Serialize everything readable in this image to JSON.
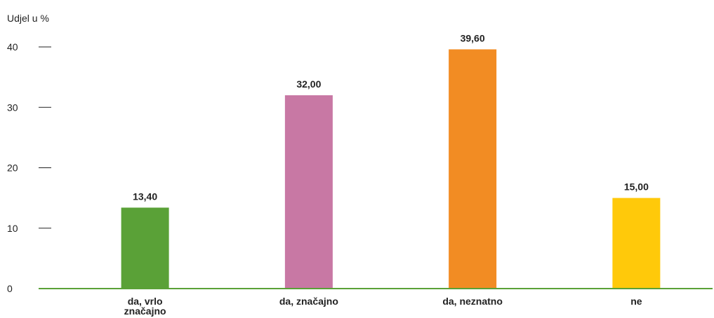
{
  "chart_data": {
    "type": "bar",
    "ylabel": "Udjel u %",
    "ylim": [
      0,
      40
    ],
    "yticks": [
      0,
      10,
      20,
      30,
      40
    ],
    "grid": false,
    "categories": [
      {
        "lines": [
          "da, vrlo",
          "značajno"
        ]
      },
      {
        "lines": [
          "da, značajno"
        ]
      },
      {
        "lines": [
          "da, neznatno"
        ]
      },
      {
        "lines": [
          "ne"
        ]
      }
    ],
    "values": [
      13.4,
      32.0,
      39.6,
      15.0
    ],
    "value_labels": [
      "13,40",
      "32,00",
      "39,60",
      "15,00"
    ],
    "colors": [
      "#5aa137",
      "#c878a4",
      "#f28c23",
      "#ffc90a"
    ],
    "axis_color": "#5aa137"
  }
}
